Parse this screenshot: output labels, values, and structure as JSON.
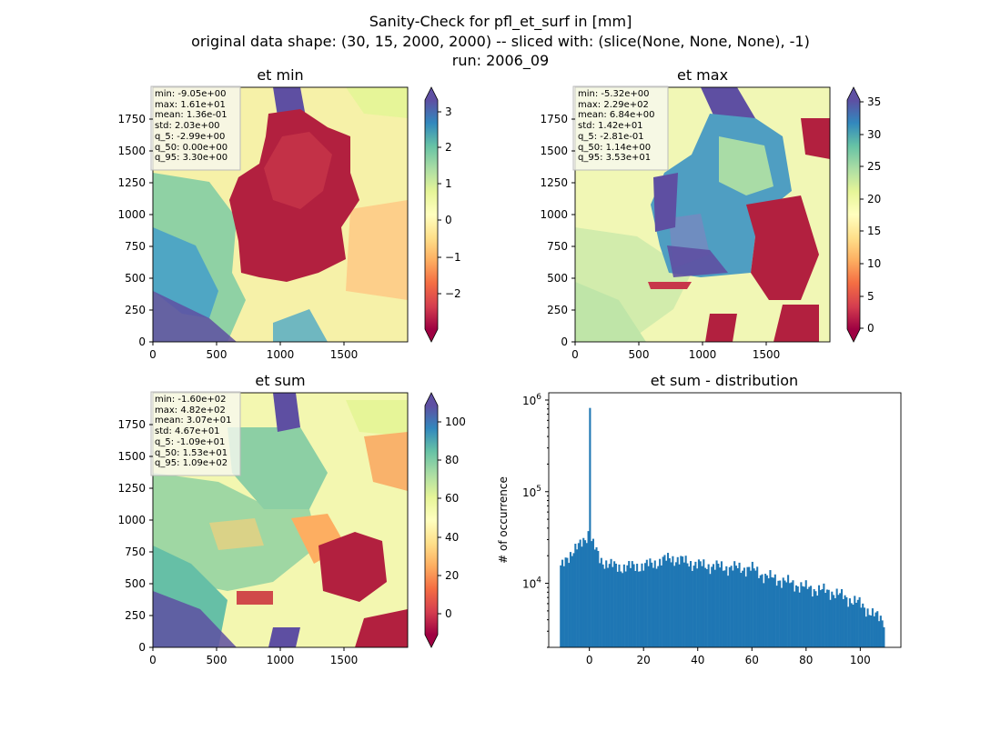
{
  "figure": {
    "title_line1": "Sanity-Check for pfl_et_surf in [mm]",
    "title_line2": "original data shape: (30, 15, 2000, 2000) -- sliced with: (slice(None, None, None), -1)",
    "title_line3": "run: 2006_09"
  },
  "chart_data": [
    {
      "type": "heatmap",
      "title": "et min",
      "x_ticks": [
        "0",
        "500",
        "1000",
        "1500"
      ],
      "y_ticks": [
        "0",
        "250",
        "500",
        "750",
        "1000",
        "1250",
        "1500",
        "1750"
      ],
      "xlim": [
        0,
        2000
      ],
      "ylim": [
        0,
        2000
      ],
      "colormap": "Spectral",
      "colorbar": {
        "range": [
          -3,
          3.5
        ],
        "ticks": [
          "3",
          "2",
          "1",
          "0",
          "−1",
          "−2"
        ],
        "extend": "both"
      },
      "stats": [
        "min: -9.05e+00",
        "max: 1.61e+01",
        "mean: 1.36e-01",
        "std: 2.03e+00",
        "q_5: -2.99e+00",
        "q_50: 0.00e+00",
        "q_95: 3.30e+00"
      ]
    },
    {
      "type": "heatmap",
      "title": "et max",
      "x_ticks": [
        "0",
        "500",
        "1000",
        "1500"
      ],
      "y_ticks": [
        "0",
        "250",
        "500",
        "750",
        "1000",
        "1250",
        "1500",
        "1750"
      ],
      "xlim": [
        0,
        2000
      ],
      "ylim": [
        0,
        2000
      ],
      "colormap": "Spectral",
      "colorbar": {
        "range": [
          -0.3,
          35.3
        ],
        "ticks": [
          "35",
          "30",
          "25",
          "20",
          "15",
          "10",
          "5",
          "0"
        ],
        "extend": "both"
      },
      "stats": [
        "min: -5.32e+00",
        "max: 2.29e+02",
        "mean: 6.84e+00",
        "std: 1.42e+01",
        "q_5: -2.81e-01",
        "q_50: 1.14e+00",
        "q_95: 3.53e+01"
      ]
    },
    {
      "type": "heatmap",
      "title": "et sum",
      "x_ticks": [
        "0",
        "500",
        "1000",
        "1500"
      ],
      "y_ticks": [
        "0",
        "250",
        "500",
        "750",
        "1000",
        "1250",
        "1500",
        "1750"
      ],
      "xlim": [
        0,
        2000
      ],
      "ylim": [
        0,
        2000
      ],
      "colormap": "Spectral",
      "colorbar": {
        "range": [
          -10.9,
          109
        ],
        "ticks": [
          "100",
          "80",
          "60",
          "40",
          "20",
          "0"
        ],
        "extend": "both"
      },
      "stats": [
        "min: -1.60e+02",
        "max: 4.82e+02",
        "mean: 3.07e+01",
        "std: 4.67e+01",
        "q_5: -1.09e+01",
        "q_50: 1.53e+01",
        "q_95: 1.09e+02"
      ]
    },
    {
      "type": "bar",
      "title": "et sum - distribution",
      "ylabel": "# of occurrence",
      "xlabel": "",
      "x_ticks": [
        "0",
        "20",
        "40",
        "60",
        "80",
        "100"
      ],
      "xlim": [
        -15,
        115
      ],
      "ylim": [
        2000,
        1200000
      ],
      "yscale": "log",
      "y_tick_labels": [
        {
          "base": "10",
          "exp": "4",
          "value": 10000
        },
        {
          "base": "10",
          "exp": "5",
          "value": 100000
        },
        {
          "base": "10",
          "exp": "6",
          "value": 1000000
        }
      ],
      "bin_range": [
        -10.9,
        109
      ],
      "bin_count": 200,
      "peak": {
        "x": 0,
        "y": 820000
      },
      "profile": [
        [
          -10.9,
          14000
        ],
        [
          -8,
          20000
        ],
        [
          -4,
          25000
        ],
        [
          -2,
          30000
        ],
        [
          0,
          37000
        ],
        [
          1,
          28000
        ],
        [
          4,
          18000
        ],
        [
          10,
          15000
        ],
        [
          20,
          15500
        ],
        [
          25,
          17000
        ],
        [
          30,
          19000
        ],
        [
          40,
          16000
        ],
        [
          50,
          15000
        ],
        [
          60,
          14500
        ],
        [
          65,
          12000
        ],
        [
          70,
          11000
        ],
        [
          80,
          9000
        ],
        [
          90,
          8000
        ],
        [
          100,
          6000
        ],
        [
          105,
          4500
        ],
        [
          109,
          4000
        ]
      ],
      "color": "#1f77b4"
    }
  ]
}
